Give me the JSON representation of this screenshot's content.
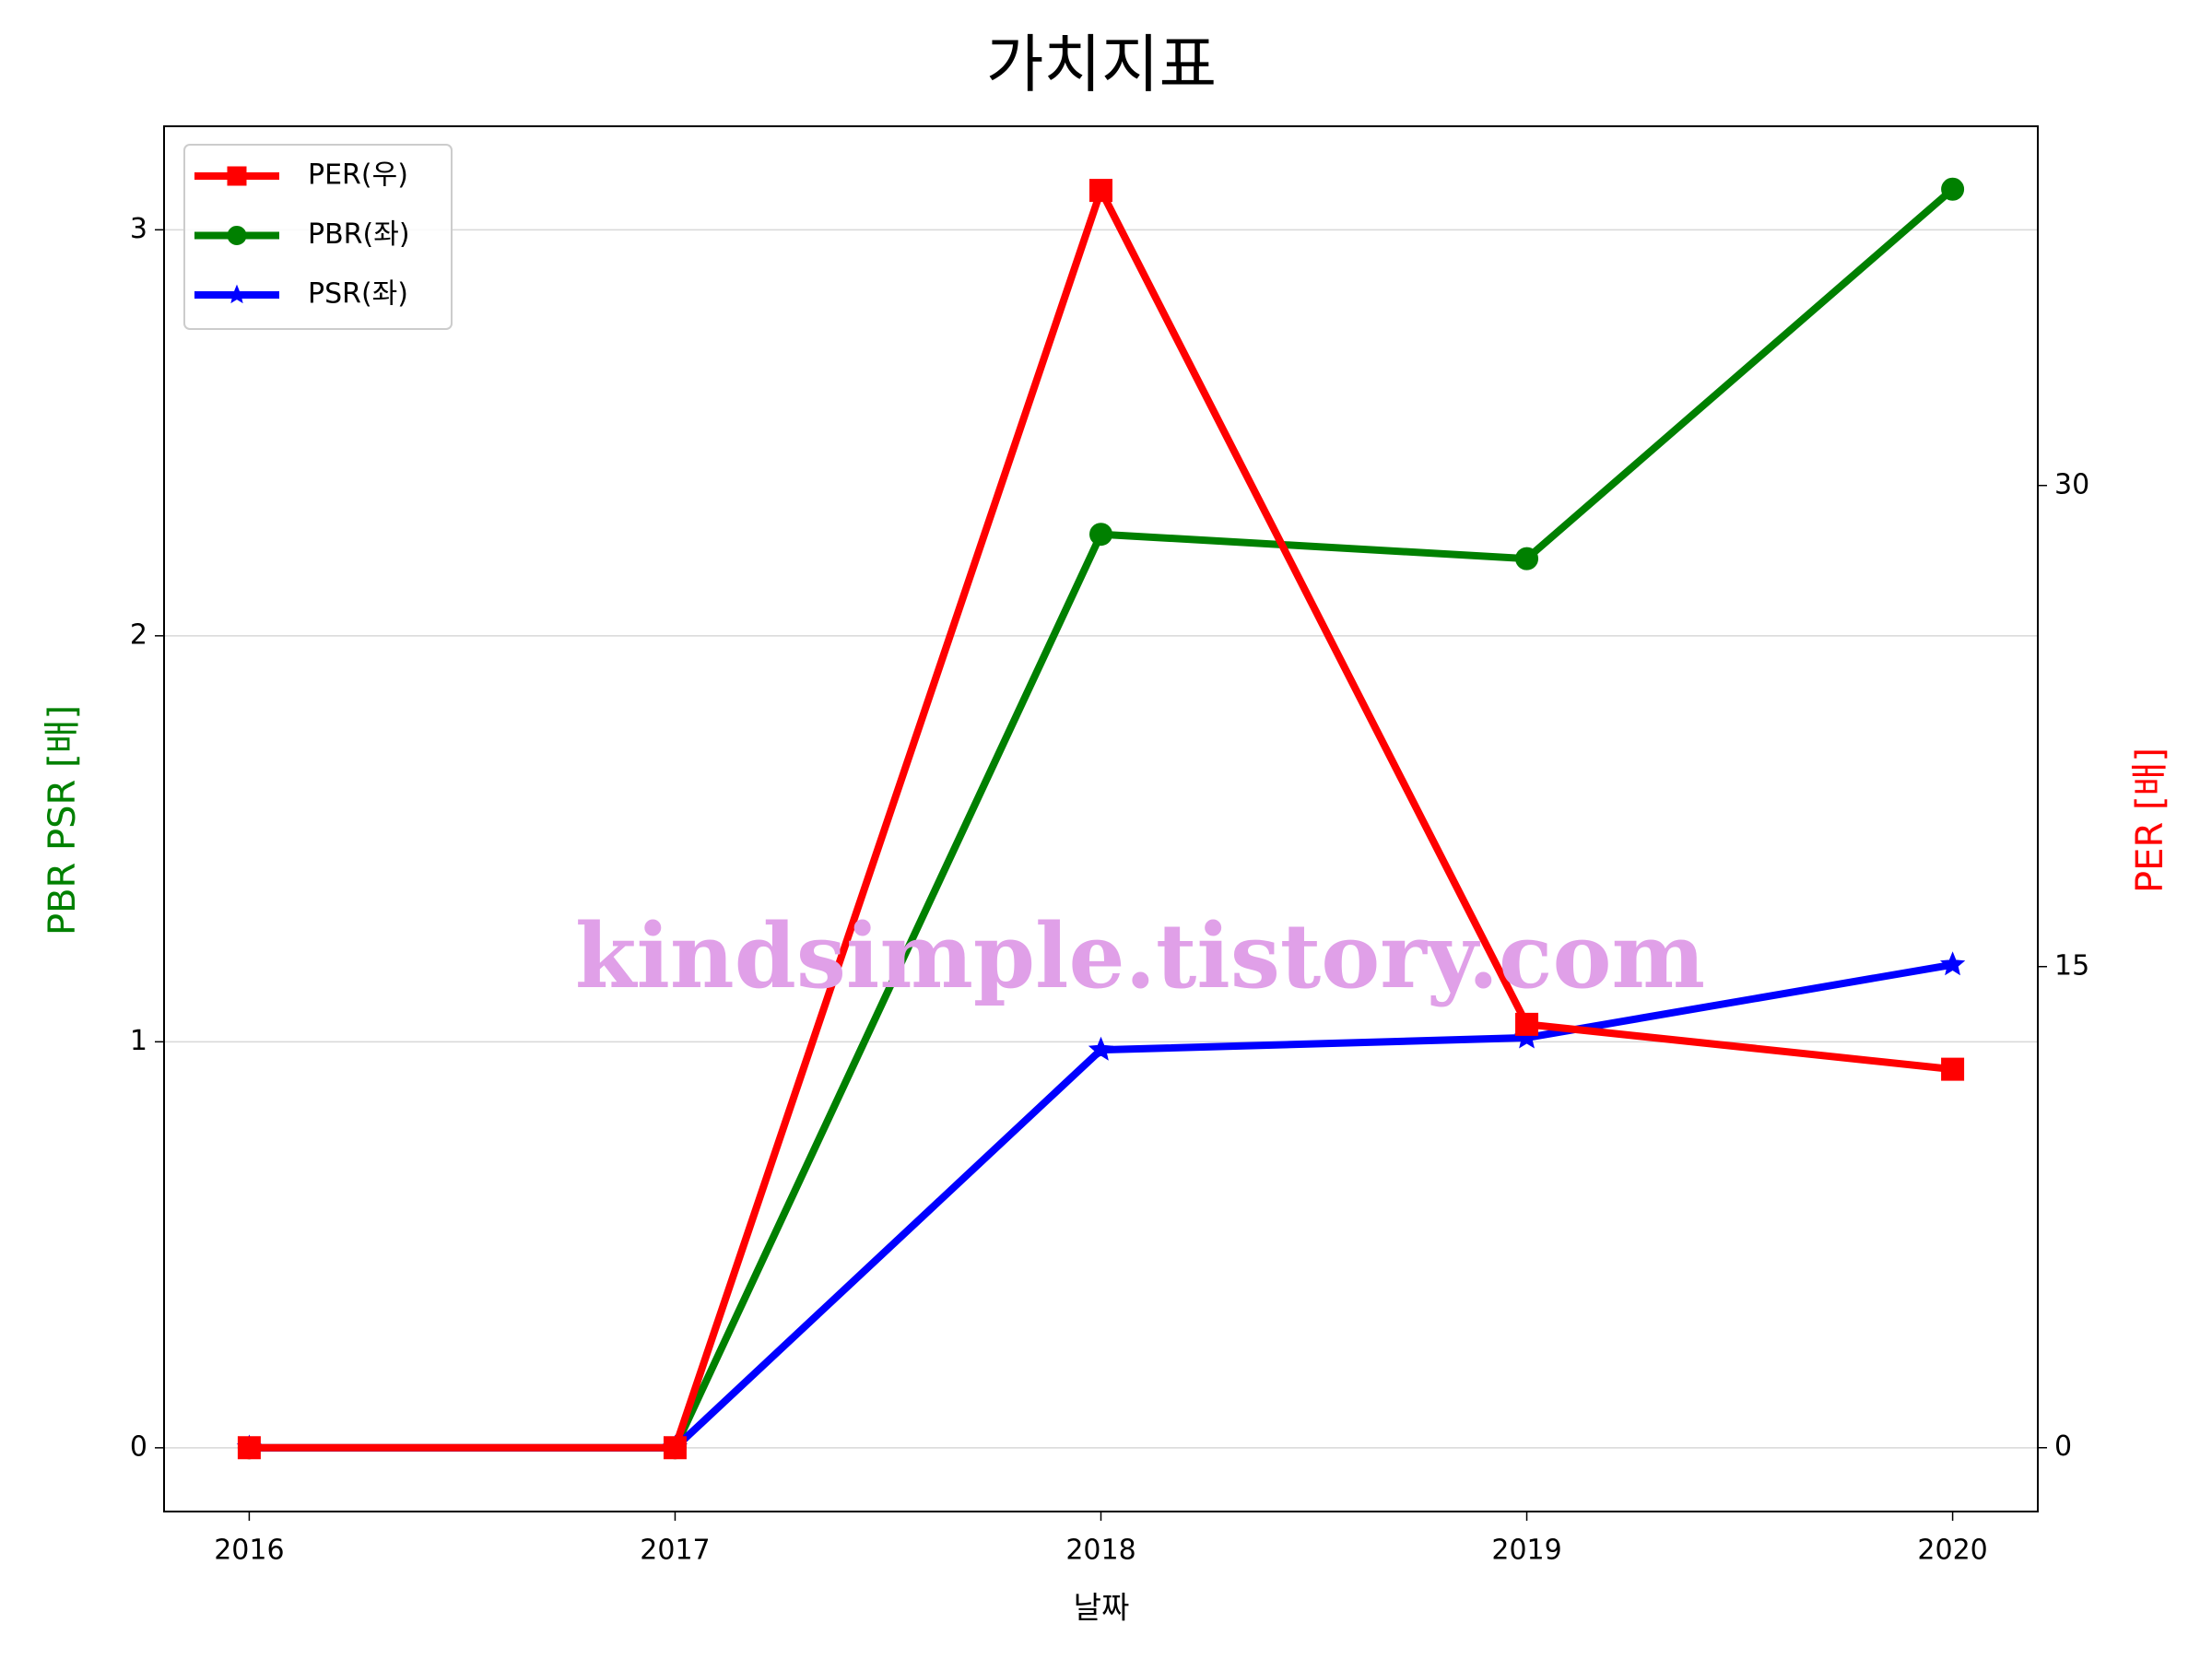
{
  "chart_data": {
    "type": "line",
    "title": "가치지표",
    "x_label": "날짜",
    "y_label": "PBR PSR [배]",
    "y2_label": "PER [배]",
    "watermark": "kindsimple.tistory.com",
    "x": [
      2016,
      2017,
      2018,
      2019,
      2020
    ],
    "xlim": [
      2015.8,
      2020.2
    ],
    "xticks": [
      2016,
      2017,
      2018,
      2019,
      2020
    ],
    "ylim": [
      -0.157,
      3.255
    ],
    "yticks": [
      0,
      1,
      2,
      3
    ],
    "y2lim": [
      -1.99,
      41.2
    ],
    "y2ticks": [
      0,
      15,
      30
    ],
    "grid": true,
    "legend": "upper left",
    "series": [
      {
        "name": "PER(우)",
        "color": "#ff0000",
        "marker": "square",
        "axis": "y2",
        "values": [
          0,
          0,
          39.2,
          13.2,
          11.8
        ]
      },
      {
        "name": "PBR(좌)",
        "color": "#008000",
        "marker": "circle",
        "values": [
          0,
          0,
          2.25,
          2.19,
          3.1
        ]
      },
      {
        "name": "PSR(좌)",
        "color": "#0000ff",
        "marker": "star",
        "values": [
          0,
          0,
          0.98,
          1.01,
          1.19
        ]
      }
    ]
  }
}
